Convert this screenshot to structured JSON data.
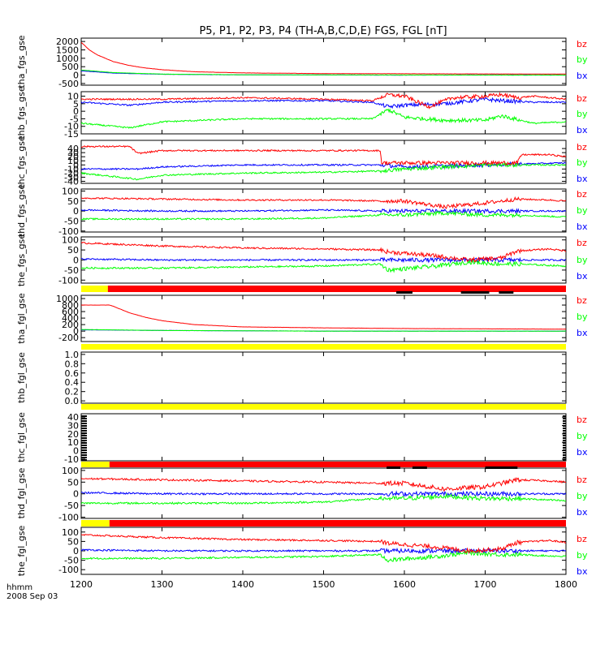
{
  "title": "P5, P1, P2, P3, P4 (TH-A,B,C,D,E) FGS, FGL [nT]",
  "footer": {
    "axis_units": "hhmm",
    "date": "2008 Sep 03"
  },
  "colors": {
    "bz": "#ff0000",
    "by": "#00ff00",
    "bx": "#0000ff",
    "flag_yellow": "#ffff00",
    "flag_red": "#ff0000",
    "flag_black": "#000000"
  },
  "chart_data": {
    "type": "line",
    "x_axis": {
      "label": "hhmm",
      "range": [
        1200,
        1800
      ],
      "ticks": [
        1200,
        1300,
        1400,
        1500,
        1600,
        1700,
        1800
      ],
      "tick_labels": [
        "1200",
        "1300",
        "1400",
        "1500",
        "1600",
        "1700",
        "1800"
      ]
    },
    "panels": [
      {
        "ylabel": "tha_fgs_gse",
        "ylim": [
          -600,
          2200
        ],
        "yticks": [
          2000,
          1500,
          1000,
          500,
          0,
          -500
        ],
        "ytick_labels": [
          "2000",
          "1500",
          "1000",
          "500",
          "0",
          "-500"
        ],
        "legend": [
          "bz",
          "by",
          "bx"
        ],
        "gse_profile": "decay",
        "series": [
          {
            "name": "bz",
            "x": [
              1200,
              1210,
              1220,
              1240,
              1260,
              1280,
              1300,
              1340,
              1400,
              1500,
              1600,
              1700,
              1800
            ],
            "values": [
              1950,
              1500,
              1200,
              800,
              570,
              420,
              320,
              200,
              130,
              90,
              80,
              70,
              60
            ]
          },
          {
            "name": "by",
            "x": [
              1200,
              1240,
              1300,
              1400,
              1500,
              1600,
              1700,
              1800
            ],
            "values": [
              300,
              150,
              60,
              20,
              10,
              5,
              0,
              0
            ]
          },
          {
            "name": "bx",
            "x": [
              1200,
              1240,
              1300,
              1400,
              1500,
              1600,
              1700,
              1800
            ],
            "values": [
              250,
              120,
              50,
              15,
              10,
              0,
              10,
              5
            ]
          }
        ]
      },
      {
        "ylabel": "thb_fgs_gse",
        "ylim": [
          -15,
          13
        ],
        "yticks": [
          10,
          5,
          0,
          -5,
          -10,
          -15
        ],
        "ytick_labels": [
          "10",
          "5",
          "0",
          "-5",
          "-10",
          "-15"
        ],
        "legend": [
          "bz",
          "by",
          "bx"
        ],
        "gse_profile": "noisy",
        "series": [
          {
            "name": "bz",
            "x": [
              1200,
              1300,
              1400,
              1500,
              1560,
              1580,
              1600,
              1630,
              1660,
              1700,
              1720,
              1740,
              1760,
              1800
            ],
            "values": [
              8,
              8,
              9,
              8,
              7,
              11,
              10,
              3,
              9,
              10,
              11,
              9,
              10,
              8
            ]
          },
          {
            "name": "by",
            "x": [
              1200,
              1260,
              1300,
              1400,
              1500,
              1560,
              1580,
              1600,
              1650,
              1700,
              1720,
              1760,
              1800
            ],
            "values": [
              -8,
              -11,
              -7,
              -5,
              -5,
              -5,
              1,
              -4,
              -6,
              -6,
              -3,
              -8,
              -7
            ]
          },
          {
            "name": "bx",
            "x": [
              1200,
              1260,
              1300,
              1400,
              1500,
              1560,
              1580,
              1600,
              1650,
              1700,
              1720,
              1760,
              1800
            ],
            "values": [
              6,
              4,
              6,
              7,
              7,
              6,
              3,
              4,
              5,
              8,
              7,
              6,
              6
            ]
          }
        ]
      },
      {
        "ylabel": "thc_fgs_gse",
        "ylim": [
          -45,
          60
        ],
        "yticks": [
          40,
          30,
          20,
          10,
          0,
          -10,
          -20,
          -30,
          -40
        ],
        "ytick_labels": [
          "40",
          "30",
          "20",
          "10",
          "0",
          "-10",
          "-20",
          "-30",
          "-40"
        ],
        "legend": [
          "bz",
          "by",
          "bx"
        ],
        "gse_profile": "noisy",
        "series": [
          {
            "name": "bz",
            "x": [
              1200,
              1260,
              1270,
              1300,
              1400,
              1500,
              1570,
              1572,
              1600,
              1700,
              1740,
              1745,
              1780,
              1800
            ],
            "values": [
              45,
              45,
              28,
              35,
              35,
              35,
              35,
              5,
              5,
              5,
              5,
              25,
              25,
              20
            ]
          },
          {
            "name": "by",
            "x": [
              1200,
              1270,
              1300,
              1400,
              1500,
              1570,
              1600,
              1700,
              1800
            ],
            "values": [
              -20,
              -35,
              -25,
              -20,
              -18,
              -15,
              -10,
              0,
              0
            ]
          },
          {
            "name": "bx",
            "x": [
              1200,
              1270,
              1300,
              1400,
              1500,
              1570,
              1600,
              1700,
              1800
            ],
            "values": [
              -10,
              -10,
              -5,
              0,
              0,
              0,
              -5,
              0,
              5
            ]
          }
        ]
      },
      {
        "ylabel": "thd_fgs_gse",
        "ylim": [
          -105,
          110
        ],
        "yticks": [
          100,
          50,
          0,
          -50,
          -100
        ],
        "ytick_labels": [
          "100",
          "50",
          "0",
          "-50",
          "-100"
        ],
        "legend": [
          "bz",
          "by",
          "bx"
        ],
        "gse_profile": "noisy",
        "series": [
          {
            "name": "bz",
            "x": [
              1200,
              1300,
              1400,
              1500,
              1570,
              1600,
              1650,
              1700,
              1740,
              1780,
              1800
            ],
            "values": [
              65,
              60,
              55,
              55,
              50,
              50,
              20,
              40,
              60,
              55,
              50
            ]
          },
          {
            "name": "by",
            "x": [
              1200,
              1300,
              1400,
              1500,
              1570,
              1600,
              1650,
              1700,
              1740,
              1800
            ],
            "values": [
              -40,
              -40,
              -40,
              -35,
              -20,
              -20,
              -10,
              -20,
              -20,
              -30
            ]
          },
          {
            "name": "bx",
            "x": [
              1200,
              1300,
              1400,
              1500,
              1570,
              1600,
              1650,
              1700,
              1800
            ],
            "values": [
              5,
              0,
              0,
              5,
              0,
              0,
              0,
              0,
              0
            ]
          }
        ]
      },
      {
        "ylabel": "the_fgs_gse",
        "ylim": [
          -115,
          115
        ],
        "yticks": [
          100,
          50,
          0,
          -50,
          -100
        ],
        "ytick_labels": [
          "100",
          "50",
          "0",
          "-50",
          "-100"
        ],
        "legend": [
          "bz",
          "by",
          "bx"
        ],
        "gse_profile": "noisy",
        "series": [
          {
            "name": "bz",
            "x": [
              1200,
              1300,
              1400,
              1500,
              1570,
              1580,
              1640,
              1680,
              1720,
              1740,
              1780,
              1800
            ],
            "values": [
              85,
              70,
              60,
              55,
              50,
              40,
              20,
              0,
              10,
              45,
              55,
              45
            ]
          },
          {
            "name": "by",
            "x": [
              1200,
              1300,
              1400,
              1500,
              1570,
              1580,
              1640,
              1680,
              1720,
              1740,
              1800
            ],
            "values": [
              -40,
              -40,
              -35,
              -30,
              -20,
              -50,
              -30,
              -10,
              -20,
              -20,
              -30
            ]
          },
          {
            "name": "bx",
            "x": [
              1200,
              1300,
              1400,
              1500,
              1570,
              1600,
              1700,
              1800
            ],
            "values": [
              5,
              0,
              0,
              0,
              0,
              0,
              0,
              0
            ]
          }
        ]
      },
      {
        "ylabel": "tha_fgl_gse",
        "ylim": [
          -320,
          1100
        ],
        "yticks": [
          1000,
          800,
          600,
          400,
          200,
          0,
          -200
        ],
        "ytick_labels": [
          "1000",
          "800",
          "600",
          "400",
          "200",
          "0",
          "-200"
        ],
        "legend": [
          "bz",
          "by",
          "bx"
        ],
        "gse_profile": "decay",
        "series": [
          {
            "name": "bz",
            "x": [
              1200,
              1235,
              1240,
              1260,
              1280,
              1300,
              1340,
              1400,
              1500,
              1600,
              1700,
              1800
            ],
            "values": [
              800,
              800,
              760,
              560,
              420,
              320,
              200,
              130,
              100,
              80,
              70,
              60
            ]
          },
          {
            "name": "by",
            "x": [
              1200,
              1300,
              1400,
              1500,
              1600,
              1700,
              1800
            ],
            "values": [
              50,
              20,
              10,
              0,
              0,
              0,
              0
            ]
          },
          {
            "name": "bx",
            "x": [
              1200,
              1300,
              1400,
              1500,
              1600,
              1700,
              1800
            ],
            "values": [
              40,
              20,
              10,
              0,
              0,
              0,
              0
            ]
          }
        ]
      },
      {
        "ylabel": "thb_fgl_gse",
        "ylim": [
          -0.05,
          1.05
        ],
        "yticks": [
          1.0,
          0.8,
          0.6,
          0.4,
          0.2,
          0.0
        ],
        "ytick_labels": [
          "1.0",
          "0.8",
          "0.6",
          "0.4",
          "0.2",
          "0.0"
        ],
        "legend": [],
        "gse_profile": "empty",
        "series": []
      },
      {
        "ylabel": "thc_fgl_gse",
        "ylim": [
          -12,
          44
        ],
        "yticks": [
          40,
          30,
          20,
          10,
          0,
          -10
        ],
        "ytick_labels": [
          "40",
          "30",
          "20",
          "10",
          "0",
          "-10"
        ],
        "legend": [
          "bz",
          "by",
          "bx"
        ],
        "gse_profile": "empty",
        "series": []
      },
      {
        "ylabel": "thd_fgl_gse",
        "ylim": [
          -105,
          110
        ],
        "yticks": [
          100,
          50,
          0,
          -50,
          -100
        ],
        "ytick_labels": [
          "100",
          "50",
          "0",
          "-50",
          "-100"
        ],
        "legend": [
          "bz",
          "by",
          "bx"
        ],
        "gse_profile": "noisy",
        "series": [
          {
            "name": "bz",
            "x": [
              1200,
              1300,
              1400,
              1500,
              1570,
              1600,
              1650,
              1700,
              1740,
              1780,
              1800
            ],
            "values": [
              65,
              60,
              55,
              50,
              45,
              45,
              20,
              30,
              60,
              55,
              50
            ]
          },
          {
            "name": "by",
            "x": [
              1200,
              1300,
              1400,
              1500,
              1570,
              1600,
              1650,
              1700,
              1740,
              1800
            ],
            "values": [
              -40,
              -40,
              -40,
              -35,
              -20,
              -20,
              -10,
              -20,
              -20,
              -30
            ]
          },
          {
            "name": "bx",
            "x": [
              1200,
              1300,
              1400,
              1500,
              1570,
              1600,
              1700,
              1800
            ],
            "values": [
              5,
              0,
              0,
              0,
              0,
              0,
              0,
              0
            ]
          }
        ]
      },
      {
        "ylabel": "the_fgl_gse",
        "ylim": [
          -125,
          125
        ],
        "yticks": [
          100,
          50,
          0,
          -50,
          -100
        ],
        "ytick_labels": [
          "100",
          "50",
          "0",
          "-50",
          "-100"
        ],
        "legend": [
          "bz",
          "by",
          "bx"
        ],
        "gse_profile": "noisy",
        "series": [
          {
            "name": "bz",
            "x": [
              1200,
              1300,
              1400,
              1500,
              1570,
              1580,
              1640,
              1680,
              1720,
              1740,
              1780,
              1800
            ],
            "values": [
              85,
              70,
              60,
              55,
              50,
              40,
              20,
              0,
              10,
              45,
              55,
              45
            ]
          },
          {
            "name": "by",
            "x": [
              1200,
              1300,
              1400,
              1500,
              1570,
              1580,
              1640,
              1680,
              1720,
              1740,
              1800
            ],
            "values": [
              -40,
              -40,
              -35,
              -30,
              -20,
              -50,
              -30,
              -10,
              -20,
              -20,
              -30
            ]
          },
          {
            "name": "bx",
            "x": [
              1200,
              1300,
              1400,
              1500,
              1570,
              1600,
              1700,
              1800
            ],
            "values": [
              5,
              0,
              0,
              0,
              0,
              0,
              0,
              0
            ]
          }
        ]
      }
    ],
    "mode_bars": [
      {
        "after_panel": 4,
        "segments": [
          {
            "color": "yellow",
            "x": [
              1200,
              1233
            ]
          },
          {
            "color": "red",
            "x": [
              1233,
              1800
            ]
          }
        ],
        "black_marks": [
          [
            1590,
            1610
          ],
          [
            1670,
            1705
          ],
          [
            1717,
            1735
          ]
        ]
      },
      {
        "after_panel": 5,
        "segments": [
          {
            "color": "yellow",
            "x": [
              1200,
              1800
            ]
          }
        ],
        "black_marks": []
      },
      {
        "after_panel": 6,
        "segments": [
          {
            "color": "yellow",
            "x": [
              1200,
              1800
            ]
          }
        ],
        "black_marks": []
      },
      {
        "after_panel": 7,
        "segments": [
          {
            "color": "yellow",
            "x": [
              1200,
              1235
            ]
          },
          {
            "color": "red",
            "x": [
              1235,
              1800
            ]
          }
        ],
        "black_marks": [
          [
            1578,
            1595
          ],
          [
            1610,
            1628
          ],
          [
            1700,
            1740
          ]
        ]
      },
      {
        "after_panel": 8,
        "segments": [
          {
            "color": "yellow",
            "x": [
              1200,
              1235
            ]
          },
          {
            "color": "red",
            "x": [
              1235,
              1800
            ]
          }
        ],
        "black_marks": []
      }
    ]
  }
}
